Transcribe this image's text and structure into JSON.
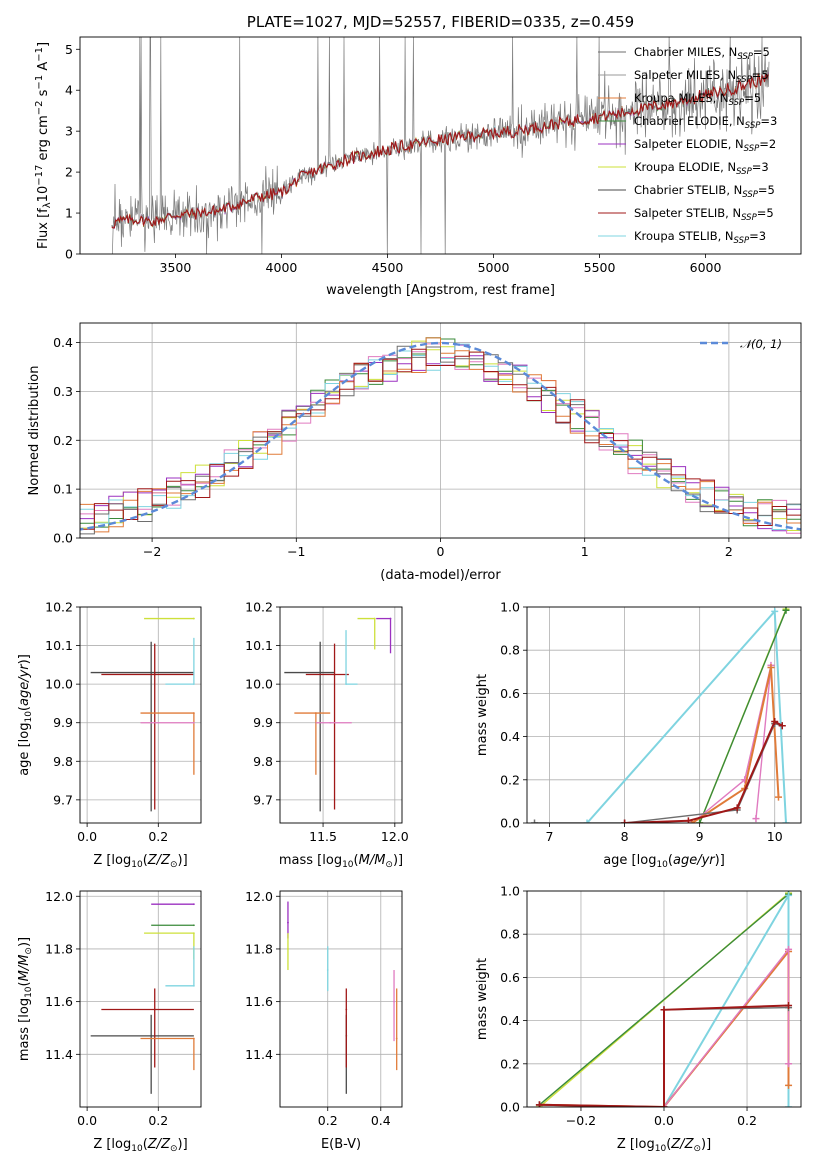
{
  "colors": {
    "chabrier_miles": "#6e6e6e",
    "salpeter_miles": "#9a9a9a",
    "kroupa_miles": "#e07b39",
    "chabrier_elodie": "#3a8a3a",
    "salpeter_elodie": "#9b30c0",
    "kroupa_elodie": "#cde03a",
    "chabrier_stelib": "#4a4a4a",
    "salpeter_stelib": "#a01818",
    "kroupa_stelib": "#7fd4e0",
    "gaussian": "#5b8ad8",
    "extra_pink": "#e07bc0"
  },
  "legend": [
    {
      "key": "chabrier_miles",
      "text": "Chabrier MILES, N",
      "sub": "SSP",
      "tail": "=5"
    },
    {
      "key": "salpeter_miles",
      "text": "Salpeter MILES, N",
      "sub": "SSP",
      "tail": "=5"
    },
    {
      "key": "kroupa_miles",
      "text": "Kroupa MILES, N",
      "sub": "SSP",
      "tail": "=5"
    },
    {
      "key": "chabrier_elodie",
      "text": "Chabrier ELODIE, N",
      "sub": "SSP",
      "tail": "=3"
    },
    {
      "key": "salpeter_elodie",
      "text": "Salpeter ELODIE, N",
      "sub": "SSP",
      "tail": "=2"
    },
    {
      "key": "kroupa_elodie",
      "text": "Kroupa ELODIE, N",
      "sub": "SSP",
      "tail": "=3"
    },
    {
      "key": "chabrier_stelib",
      "text": "Chabrier STELIB, N",
      "sub": "SSP",
      "tail": "=5"
    },
    {
      "key": "salpeter_stelib",
      "text": "Salpeter STELIB, N",
      "sub": "SSP",
      "tail": "=5"
    },
    {
      "key": "kroupa_stelib",
      "text": "Kroupa STELIB, N",
      "sub": "SSP",
      "tail": "=3"
    }
  ],
  "chart_data": [
    {
      "id": "spectrum",
      "type": "line",
      "title": "PLATE=1027, MJD=52557, FIBERID=0335, z=0.459",
      "xlabel": "wavelength [Angstrom, rest frame]",
      "ylabel": "Flux [fλ10⁻¹⁷ erg cm⁻² s⁻¹ A⁻¹]",
      "xlim": [
        3050,
        6450
      ],
      "ylim": [
        0,
        5.3
      ],
      "xticks": [
        3500,
        4000,
        4500,
        5000,
        5500,
        6000
      ],
      "yticks": [
        0,
        1,
        2,
        3,
        4,
        5
      ],
      "continuum": [
        [
          3200,
          0.75
        ],
        [
          3300,
          0.85
        ],
        [
          3400,
          0.8
        ],
        [
          3500,
          0.95
        ],
        [
          3700,
          1.05
        ],
        [
          3900,
          1.4
        ],
        [
          4000,
          1.5
        ],
        [
          4100,
          1.9
        ],
        [
          4300,
          2.3
        ],
        [
          4500,
          2.55
        ],
        [
          4700,
          2.75
        ],
        [
          4900,
          2.9
        ],
        [
          5100,
          3.0
        ],
        [
          5300,
          3.2
        ],
        [
          5500,
          3.35
        ],
        [
          5700,
          3.55
        ],
        [
          5900,
          3.75
        ],
        [
          6100,
          4.0
        ],
        [
          6300,
          4.3
        ]
      ]
    },
    {
      "id": "residuals",
      "type": "line",
      "xlabel": "(data-model)/error",
      "ylabel": "Normed distribution",
      "legend": "𝒩(0, 1)",
      "xlim": [
        -2.5,
        2.5
      ],
      "ylim": [
        0,
        0.44
      ],
      "xticks": [
        -2,
        -1,
        0,
        1,
        2
      ],
      "yticks": [
        0.0,
        0.1,
        0.2,
        0.3,
        0.4
      ],
      "mean": 0,
      "sigma": 1
    },
    {
      "id": "age_vs_Z",
      "type": "scatter",
      "xlabel": "Z [log₁₀(Z/Z⊙)]",
      "ylabel": "age  [log₁₀(age/yr)]",
      "xlim": [
        -0.02,
        0.32
      ],
      "ylim": [
        9.64,
        10.2
      ],
      "xticks": [
        0.0,
        0.2
      ],
      "yticks": [
        9.7,
        9.8,
        9.9,
        10.0,
        10.1,
        10.2
      ],
      "points": [
        {
          "c": "chabrier_stelib",
          "x": 0.18,
          "y": 10.03,
          "xerr": [
            0.17,
            0.12
          ],
          "yerr": [
            0.36,
            0.08
          ]
        },
        {
          "c": "salpeter_stelib",
          "x": 0.19,
          "y": 10.025,
          "xerr": [
            0.15,
            0.11
          ],
          "yerr": [
            0.35,
            0.08
          ]
        },
        {
          "c": "kroupa_miles",
          "x": 0.3,
          "y": 9.925,
          "xerr": [
            0.15,
            0.0
          ],
          "yerr": [
            0.16,
            0.0
          ]
        },
        {
          "c": "extra_pink",
          "x": 0.3,
          "y": 9.9,
          "xerr": [
            0.15,
            0.0
          ],
          "yerr": [
            0.0,
            0.0
          ]
        },
        {
          "c": "kroupa_elodie",
          "x": 0.3,
          "y": 10.17,
          "xerr": [
            0.14,
            0.0
          ],
          "yerr": [
            0.0,
            0.0
          ]
        },
        {
          "c": "kroupa_stelib",
          "x": 0.3,
          "y": 10.0,
          "xerr": [
            0.08,
            0.0
          ],
          "yerr": [
            0.0,
            0.12
          ]
        }
      ]
    },
    {
      "id": "age_vs_mass",
      "type": "scatter",
      "xlabel": "mass [log₁₀(M/M⊙)]",
      "ylabel": "",
      "xlim": [
        11.2,
        12.05
      ],
      "ylim": [
        9.64,
        10.2
      ],
      "xticks": [
        11.5,
        12.0
      ],
      "yticks": [
        9.7,
        9.8,
        9.9,
        10.0,
        10.1,
        10.2
      ],
      "points": [
        {
          "c": "chabrier_stelib",
          "x": 11.48,
          "y": 10.03,
          "xerr": [
            0.25,
            0.1
          ],
          "yerr": [
            0.36,
            0.08
          ]
        },
        {
          "c": "salpeter_stelib",
          "x": 11.58,
          "y": 10.025,
          "xerr": [
            0.2,
            0.1
          ],
          "yerr": [
            0.35,
            0.08
          ]
        },
        {
          "c": "kroupa_miles",
          "x": 11.45,
          "y": 9.925,
          "xerr": [
            0.15,
            0.1
          ],
          "yerr": [
            0.16,
            0.0
          ]
        },
        {
          "c": "extra_pink",
          "x": 11.55,
          "y": 9.9,
          "xerr": [
            0.1,
            0.15
          ],
          "yerr": [
            0.0,
            0.0
          ]
        },
        {
          "c": "kroupa_elodie",
          "x": 11.86,
          "y": 10.17,
          "xerr": [
            0.12,
            0.0
          ],
          "yerr": [
            0.08,
            0.0
          ]
        },
        {
          "c": "salpeter_elodie",
          "x": 11.97,
          "y": 10.17,
          "xerr": [
            0.1,
            0.0
          ],
          "yerr": [
            0.09,
            0.0
          ]
        },
        {
          "c": "kroupa_stelib",
          "x": 11.66,
          "y": 10.0,
          "xerr": [
            0.0,
            0.08
          ],
          "yerr": [
            0.0,
            0.14
          ]
        }
      ]
    },
    {
      "id": "weight_vs_age",
      "type": "line",
      "xlabel": "age  [log₁₀(age/yr)]",
      "ylabel": "mass weight",
      "xlim": [
        6.7,
        10.35
      ],
      "ylim": [
        0,
        1.0
      ],
      "xticks": [
        7,
        8,
        9,
        10
      ],
      "yticks": [
        0.0,
        0.2,
        0.4,
        0.6,
        0.8,
        1.0
      ],
      "series": [
        {
          "c": "kroupa_stelib",
          "x": [
            7.5,
            10.0,
            10.15
          ],
          "y": [
            0.0,
            0.98,
            0.0
          ]
        },
        {
          "c": "kroupa_elodie",
          "x": [
            9.0,
            10.15
          ],
          "y": [
            0.0,
            0.99
          ]
        },
        {
          "c": "chabrier_elodie",
          "x": [
            9.0,
            10.15
          ],
          "y": [
            0.0,
            0.985
          ]
        },
        {
          "c": "extra_pink",
          "x": [
            8.9,
            9.6,
            9.95,
            9.75
          ],
          "y": [
            0.0,
            0.2,
            0.73,
            0.02
          ]
        },
        {
          "c": "kroupa_miles",
          "x": [
            8.9,
            9.6,
            9.95,
            10.05
          ],
          "y": [
            0.0,
            0.16,
            0.72,
            0.12
          ]
        },
        {
          "c": "chabrier_miles",
          "x": [
            6.8,
            8.0,
            9.5,
            10.0,
            10.1
          ],
          "y": [
            0.0,
            0.0,
            0.06,
            0.46,
            0.45
          ]
        },
        {
          "c": "salpeter_stelib",
          "x": [
            8.0,
            8.85,
            9.5,
            10.0,
            10.1
          ],
          "y": [
            0.0,
            0.01,
            0.07,
            0.47,
            0.45
          ]
        }
      ]
    },
    {
      "id": "mass_vs_Z",
      "type": "scatter",
      "xlabel": "Z [log₁₀(Z/Z⊙)]",
      "ylabel": "mass [log₁₀(M/M⊙)]",
      "xlim": [
        -0.02,
        0.32
      ],
      "ylim": [
        11.2,
        12.02
      ],
      "xticks": [
        0.0,
        0.2
      ],
      "yticks": [
        11.4,
        11.6,
        11.8,
        12.0
      ],
      "points": [
        {
          "c": "chabrier_stelib",
          "x": 0.18,
          "y": 11.47,
          "xerr": [
            0.17,
            0.12
          ],
          "yerr": [
            0.22,
            0.08
          ]
        },
        {
          "c": "salpeter_stelib",
          "x": 0.19,
          "y": 11.57,
          "xerr": [
            0.15,
            0.11
          ],
          "yerr": [
            0.22,
            0.08
          ]
        },
        {
          "c": "kroupa_miles",
          "x": 0.3,
          "y": 11.46,
          "xerr": [
            0.15,
            0.0
          ],
          "yerr": [
            0.12,
            0.0
          ]
        },
        {
          "c": "salpeter_elodie",
          "x": 0.3,
          "y": 11.97,
          "xerr": [
            0.12,
            0.0
          ],
          "yerr": [
            0.0,
            0.0
          ]
        },
        {
          "c": "chabrier_elodie",
          "x": 0.3,
          "y": 11.89,
          "xerr": [
            0.12,
            0.0
          ],
          "yerr": [
            0.0,
            0.0
          ]
        },
        {
          "c": "kroupa_elodie",
          "x": 0.3,
          "y": 11.86,
          "xerr": [
            0.14,
            0.0
          ],
          "yerr": [
            0.1,
            0.0
          ]
        },
        {
          "c": "kroupa_stelib",
          "x": 0.3,
          "y": 11.66,
          "xerr": [
            0.08,
            0.0
          ],
          "yerr": [
            0.0,
            0.15
          ]
        }
      ]
    },
    {
      "id": "mass_vs_ebv",
      "type": "scatter",
      "xlabel": "E(B-V)",
      "ylabel": "",
      "xlim": [
        0.02,
        0.48
      ],
      "ylim": [
        11.2,
        12.02
      ],
      "xticks": [
        0.2,
        0.4
      ],
      "yticks": [
        11.4,
        11.6,
        11.8,
        12.0
      ],
      "points": [
        {
          "c": "chabrier_stelib",
          "x": 0.27,
          "y": 11.47,
          "xerr": [
            0,
            0
          ],
          "yerr": [
            0.22,
            0.08
          ]
        },
        {
          "c": "salpeter_stelib",
          "x": 0.27,
          "y": 11.57,
          "xerr": [
            0,
            0
          ],
          "yerr": [
            0.22,
            0.08
          ]
        },
        {
          "c": "kroupa_miles",
          "x": 0.46,
          "y": 11.46,
          "xerr": [
            0,
            0
          ],
          "yerr": [
            0.12,
            0.19
          ]
        },
        {
          "c": "extra_pink",
          "x": 0.45,
          "y": 11.6,
          "xerr": [
            0,
            0
          ],
          "yerr": [
            0.15,
            0.12
          ]
        },
        {
          "c": "kroupa_stelib",
          "x": 0.2,
          "y": 11.72,
          "xerr": [
            0,
            0
          ],
          "yerr": [
            0.08,
            0.09
          ]
        },
        {
          "c": "salpeter_elodie",
          "x": 0.05,
          "y": 11.9,
          "xerr": [
            0,
            0
          ],
          "yerr": [
            0.06,
            0.08
          ]
        },
        {
          "c": "kroupa_elodie",
          "x": 0.05,
          "y": 11.8,
          "xerr": [
            0,
            0
          ],
          "yerr": [
            0.08,
            0.06
          ]
        }
      ]
    },
    {
      "id": "weight_vs_Z",
      "type": "line",
      "xlabel": "Z [log₁₀(Z/Z⊙)]",
      "ylabel": "mass weight",
      "xlim": [
        -0.33,
        0.33
      ],
      "ylim": [
        0,
        1.0
      ],
      "xticks": [
        -0.2,
        0.0,
        0.2
      ],
      "yticks": [
        0.0,
        0.2,
        0.4,
        0.6,
        0.8,
        1.0
      ],
      "series": [
        {
          "c": "kroupa_elodie",
          "x": [
            -0.3,
            0.3
          ],
          "y": [
            0.0,
            0.99
          ]
        },
        {
          "c": "chabrier_elodie",
          "x": [
            -0.3,
            0.3
          ],
          "y": [
            0.01,
            0.985
          ]
        },
        {
          "c": "kroupa_stelib",
          "x": [
            0.0,
            0.3,
            0.3
          ],
          "y": [
            0.0,
            0.98,
            0.0
          ]
        },
        {
          "c": "kroupa_miles",
          "x": [
            -0.3,
            0.0,
            0.3,
            0.3
          ],
          "y": [
            0.01,
            0.0,
            0.72,
            0.1
          ]
        },
        {
          "c": "extra_pink",
          "x": [
            -0.3,
            0.0,
            0.3,
            0.3
          ],
          "y": [
            0.01,
            0.0,
            0.73,
            0.2
          ]
        },
        {
          "c": "chabrier_miles",
          "x": [
            -0.3,
            0.0,
            0.0,
            0.3
          ],
          "y": [
            0.01,
            0.0,
            0.45,
            0.46
          ]
        },
        {
          "c": "salpeter_stelib",
          "x": [
            -0.3,
            0.0,
            0.0,
            0.3
          ],
          "y": [
            0.01,
            0.0,
            0.45,
            0.47
          ]
        }
      ]
    }
  ]
}
